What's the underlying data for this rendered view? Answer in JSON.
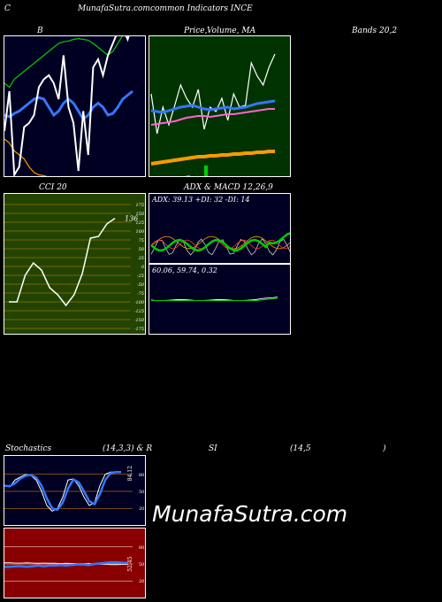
{
  "header": {
    "c": "C",
    "site": "MunafaSutra.com",
    "title_rest": "common Indicators INCE"
  },
  "labels": {
    "b": "B",
    "price": "Price,",
    "volume_ma": "Volume, MA",
    "bands": "Bands 20,2",
    "cci": "CCI 20",
    "adx_macd": "ADX  & MACD 12,26,9",
    "stoch_left": "Stochastics",
    "stoch_mid": "(14,3,3) & R",
    "stoch_si": "SI",
    "stoch_param": "(14,5",
    "stoch_close": ")"
  },
  "watermark": "MunafaSutra.com",
  "colors": {
    "bands_bg": "#000022",
    "price_bg": "#003300",
    "cci_bg": "#224400",
    "adx_bg": "#000022",
    "stoch_bg": "#000022",
    "rsi_bg": "#880000",
    "green": "#00cc00",
    "blue": "#3377ff",
    "orange": "#ff9900"
  },
  "chart_data": [
    {
      "type": "line",
      "name": "bollinger-bands",
      "series": [
        {
          "color": "#ffffff",
          "values": [
            170,
            120,
            225,
            215,
            165,
            160,
            150,
            115,
            105,
            100,
            110,
            130,
            75,
            140,
            160,
            220,
            145,
            200,
            90,
            80,
            100,
            75,
            60,
            45,
            40,
            55,
            35
          ]
        },
        {
          "color": "#00cc00",
          "values": [
            110,
            115,
            105,
            100,
            95,
            90,
            85,
            80,
            75,
            70,
            65,
            60,
            58,
            57,
            55,
            54,
            55,
            56,
            60,
            65,
            70,
            75,
            70,
            60,
            50,
            45,
            40
          ]
        },
        {
          "color": "#3377ff",
          "values": [
            150,
            152,
            148,
            145,
            140,
            135,
            130,
            128,
            130,
            140,
            150,
            145,
            135,
            130,
            135,
            145,
            155,
            150,
            140,
            135,
            140,
            150,
            148,
            140,
            130,
            125,
            120
          ]
        },
        {
          "color": "#ff9900",
          "values": [
            180,
            185,
            195,
            200,
            205,
            215,
            222,
            225,
            226,
            228,
            230,
            231,
            232,
            232,
            233,
            233,
            234,
            234,
            235,
            235,
            236,
            236,
            237,
            237,
            237,
            238,
            238
          ]
        }
      ]
    },
    {
      "type": "line",
      "name": "price-volume-ma",
      "series": [
        {
          "color": "#ffffff",
          "values": [
            105,
            150,
            120,
            140,
            118,
            95,
            110,
            120,
            100,
            145,
            120,
            125,
            110,
            135,
            105,
            120,
            118,
            70,
            85,
            95,
            75,
            60
          ]
        },
        {
          "color": "#3377ff",
          "values": [
            124,
            125,
            126,
            124,
            122,
            120,
            119,
            118,
            120,
            122,
            123,
            122,
            121,
            120,
            122,
            121,
            120,
            118,
            116,
            115,
            114,
            113
          ]
        },
        {
          "color": "#ff66cc",
          "values": [
            140,
            139,
            138,
            137,
            136,
            134,
            132,
            131,
            130,
            130,
            131,
            130,
            129,
            128,
            128,
            127,
            126,
            125,
            124,
            123,
            122,
            122
          ]
        },
        {
          "color": "#ff9900",
          "values": [
            184,
            183,
            182,
            181,
            180,
            179,
            178,
            177,
            176,
            176,
            175,
            175,
            174,
            174,
            173,
            173,
            172,
            172,
            171,
            171,
            170,
            170
          ]
        }
      ],
      "volume": [
        2,
        2,
        2,
        2,
        2,
        2,
        3,
        2,
        2,
        14,
        2,
        2,
        2,
        2,
        2,
        2,
        2,
        2,
        2,
        2,
        2,
        2
      ]
    },
    {
      "type": "line",
      "name": "cci",
      "ticks": [
        "175",
        "150",
        "125",
        "100",
        "75",
        "50",
        "25",
        "0",
        "-25",
        "-50",
        "-75",
        "-100",
        "-125",
        "-150",
        "-175"
      ],
      "value_label": "136",
      "x": [
        0,
        1,
        2,
        3,
        4,
        5,
        6,
        7,
        8,
        9,
        10,
        11,
        12,
        13
      ],
      "values": [
        -100,
        -100,
        -25,
        10,
        -10,
        -60,
        -80,
        -110,
        -80,
        -20,
        80,
        85,
        120,
        136
      ]
    },
    {
      "type": "line",
      "name": "adx",
      "label": "ADX: 39.13  +DI: 32  -DI: 14"
    },
    {
      "type": "line",
      "name": "macd",
      "label": "60.06,  59.74,  0.32"
    },
    {
      "type": "line",
      "name": "stochastics",
      "ticks": [
        "80",
        "50",
        "20"
      ],
      "value_label": "84.12",
      "values": [
        60,
        58,
        70,
        75,
        80,
        78,
        70,
        50,
        25,
        15,
        20,
        40,
        70,
        72,
        60,
        40,
        25,
        30,
        60,
        80,
        84,
        84,
        84
      ]
    },
    {
      "type": "line",
      "name": "rsi",
      "ticks": [
        "80",
        "50",
        "20"
      ],
      "value_label": "52.45",
      "values": [
        45,
        45,
        46,
        46,
        45,
        46,
        47,
        46,
        47,
        47,
        48,
        47,
        48,
        49,
        49,
        48,
        50,
        51,
        52,
        53,
        53,
        52,
        52
      ]
    }
  ]
}
